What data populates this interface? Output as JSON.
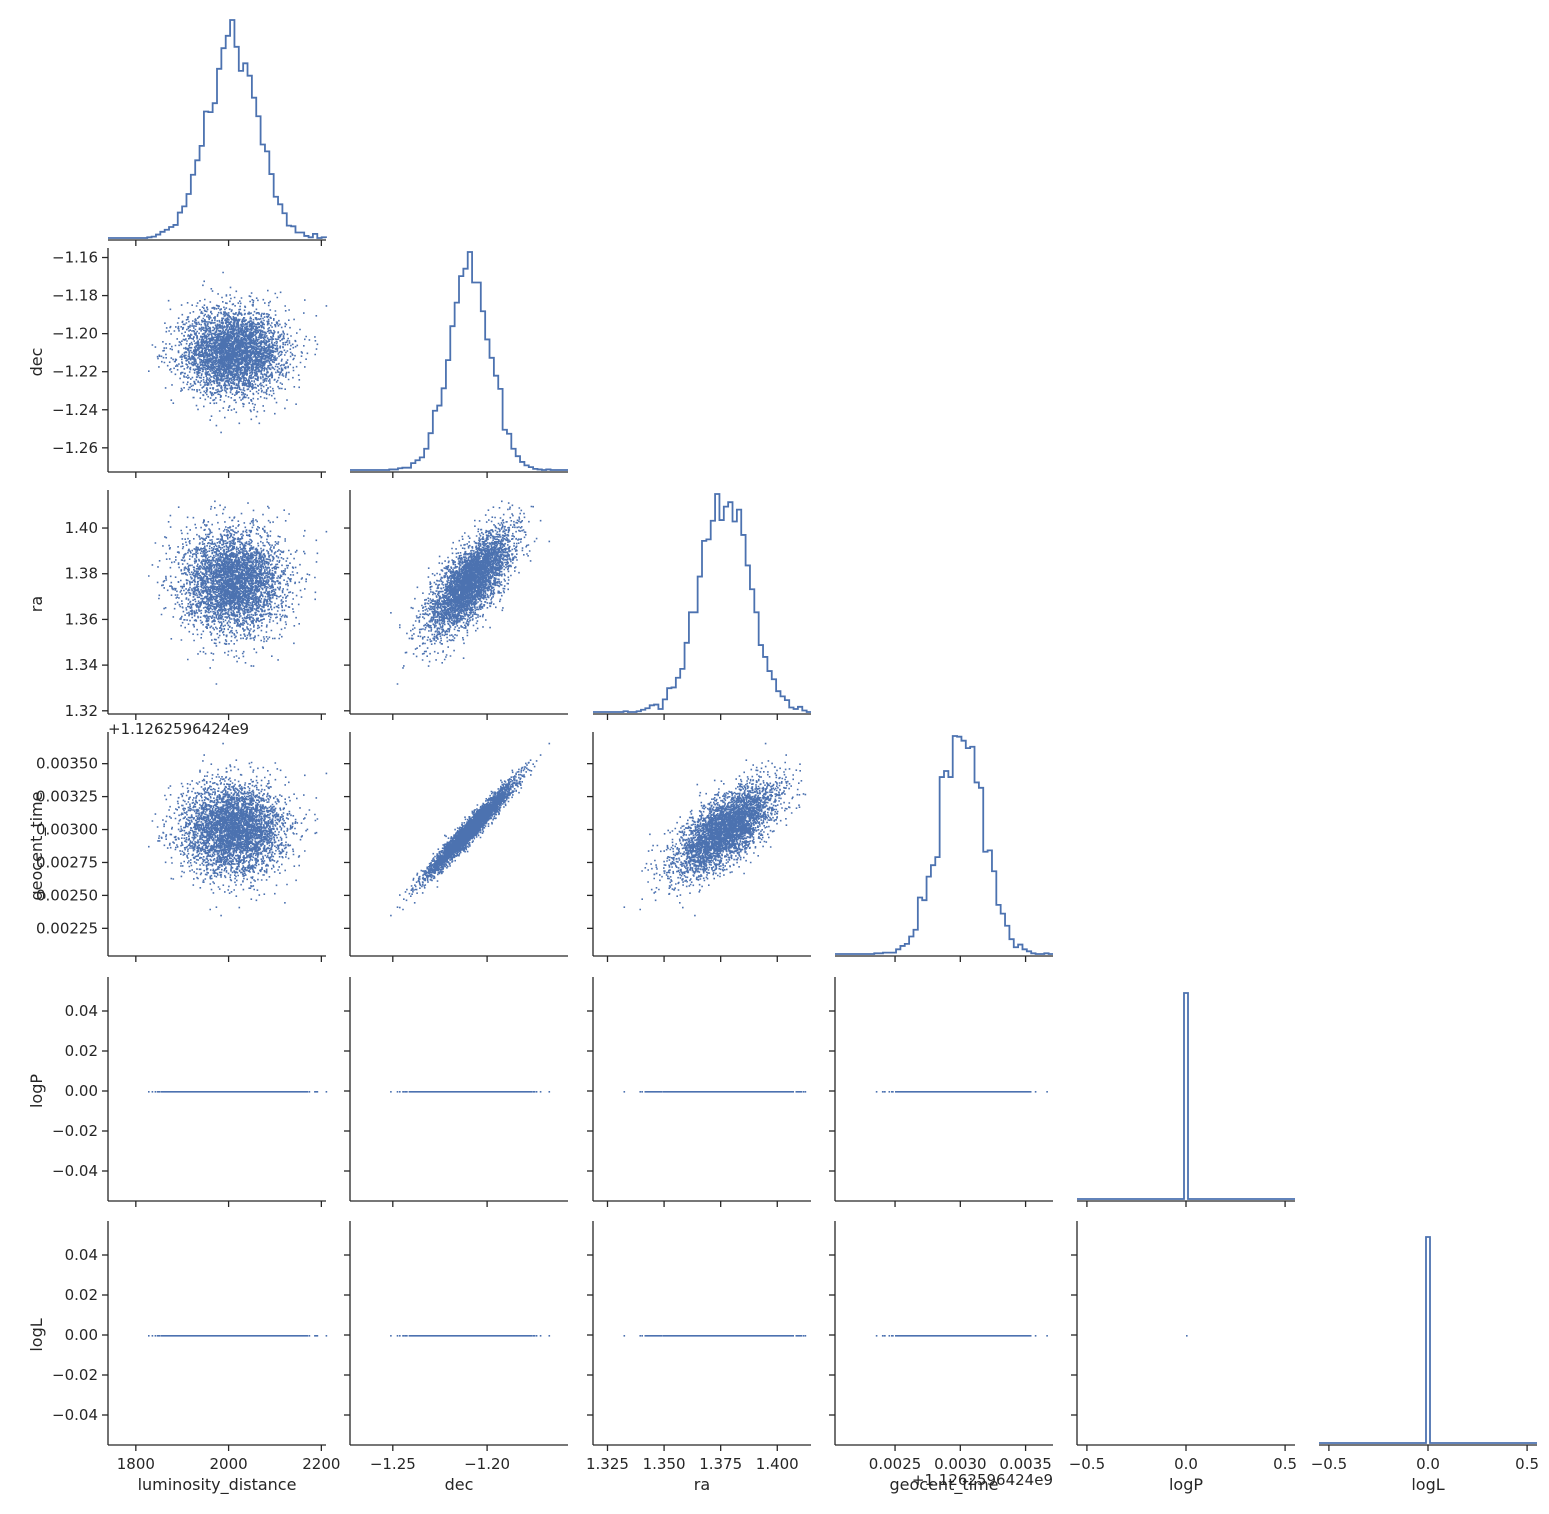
{
  "chart_data": {
    "type": "corner-plot",
    "title": "",
    "variables": [
      {
        "name": "luminosity_distance",
        "range": [
          1740,
          2210
        ],
        "ticks": [
          1800,
          2000,
          2200
        ],
        "tick_labels": [
          "1800",
          "2000",
          "2200"
        ],
        "mean": 2010,
        "sd": 55
      },
      {
        "name": "dec",
        "range": [
          -1.2727,
          -1.1571
        ],
        "ticks": [
          -1.26,
          -1.24,
          -1.22,
          -1.2,
          -1.18,
          -1.16
        ],
        "tick_labels": [
          "−1.26",
          "−1.24",
          "−1.22",
          "−1.20",
          "−1.18",
          "−1.16"
        ],
        "x_ticks": [
          -1.25,
          -1.2
        ],
        "x_tick_labels": [
          "−1.25",
          "−1.20"
        ],
        "mean": -1.209,
        "sd": 0.011
      },
      {
        "name": "ra",
        "range": [
          1.3186,
          1.4149
        ],
        "ticks": [
          1.32,
          1.34,
          1.36,
          1.38,
          1.4
        ],
        "tick_labels": [
          "1.32",
          "1.34",
          "1.36",
          "1.38",
          "1.40"
        ],
        "x_ticks": [
          1.325,
          1.35,
          1.375,
          1.4
        ],
        "x_tick_labels": [
          "1.325",
          "1.350",
          "1.375",
          "1.400"
        ],
        "mean": 1.377,
        "sd": 0.011
      },
      {
        "name": "geocent_time",
        "range": [
          0.00204,
          0.00371
        ],
        "ticks": [
          0.00225,
          0.0025,
          0.00275,
          0.003,
          0.00325,
          0.0035
        ],
        "tick_labels": [
          "0.00225",
          "0.00250",
          "0.00275",
          "0.00300",
          "0.00325",
          "0.00350"
        ],
        "x_ticks": [
          0.0025,
          0.003,
          0.0035
        ],
        "x_tick_labels": [
          "0.0025",
          "0.0030",
          "0.0035"
        ],
        "offset_text": "+1.1262596424e9",
        "mean": 0.00301,
        "sd": 0.00017
      },
      {
        "name": "logP",
        "range": [
          -0.055,
          0.055
        ],
        "ticks": [
          -0.04,
          -0.02,
          0.0,
          0.02,
          0.04
        ],
        "tick_labels": [
          "−0.04",
          "−0.02",
          "0.00",
          "0.02",
          "0.04"
        ],
        "x_range": [
          -0.55,
          0.55
        ],
        "x_ticks": [
          -0.5,
          0.0,
          0.5
        ],
        "x_tick_labels": [
          "−0.5",
          "0.0",
          "0.5"
        ],
        "constant": 0.0
      },
      {
        "name": "logL",
        "range": [
          -0.055,
          0.055
        ],
        "ticks": [
          -0.04,
          -0.02,
          0.0,
          0.02,
          0.04
        ],
        "tick_labels": [
          "−0.04",
          "−0.02",
          "0.00",
          "0.02",
          "0.04"
        ],
        "x_range": [
          -0.55,
          0.55
        ],
        "x_ticks": [
          -0.5,
          0.0,
          0.5
        ],
        "x_tick_labels": [
          "−0.5",
          "0.0",
          "0.5"
        ],
        "constant": 0.0
      }
    ],
    "correlations": {
      "dec_ra": 0.72,
      "dec_geocent_time": 0.97,
      "ra_geocent_time": 0.7
    },
    "diagonal": "step-histogram",
    "off_diagonal": "scatter",
    "series_color": "#4c72b0",
    "grid": false,
    "legend": "none"
  }
}
